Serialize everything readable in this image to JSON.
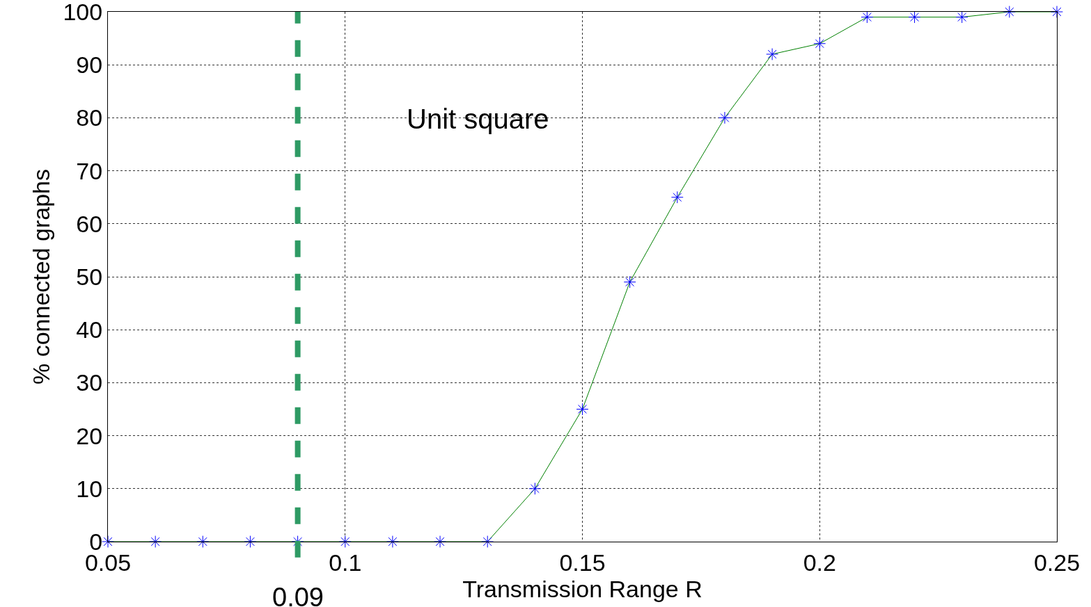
{
  "chart_data": {
    "type": "line",
    "xlabel": "Transmission Range R",
    "ylabel": "% connected graphs",
    "x": [
      0.05,
      0.06,
      0.07,
      0.08,
      0.09,
      0.1,
      0.11,
      0.12,
      0.13,
      0.14,
      0.15,
      0.16,
      0.17,
      0.18,
      0.19,
      0.2,
      0.21,
      0.22,
      0.23,
      0.24,
      0.25
    ],
    "series": [
      {
        "color": "#008000",
        "values": [
          0,
          0,
          0,
          0,
          0,
          0,
          0,
          0,
          0,
          10,
          25,
          49,
          65,
          80,
          92,
          94,
          99,
          99,
          99,
          100,
          100
        ]
      }
    ],
    "xlim": [
      0.05,
      0.25
    ],
    "xticks": [
      0.05,
      0.1,
      0.15,
      0.2,
      0.25
    ],
    "ylim": [
      0,
      100
    ],
    "yticks": [
      0,
      10,
      20,
      30,
      40,
      50,
      60,
      70,
      80,
      90,
      100
    ],
    "grid": true,
    "marker": "cross",
    "line_style": "solid",
    "legend": false,
    "ref_lines": [
      {
        "axis": "x",
        "value": 0.09,
        "label": "0.09",
        "color": "#2e9a64",
        "line_style": "dashed"
      }
    ],
    "annotations": [
      "Unit square"
    ]
  }
}
